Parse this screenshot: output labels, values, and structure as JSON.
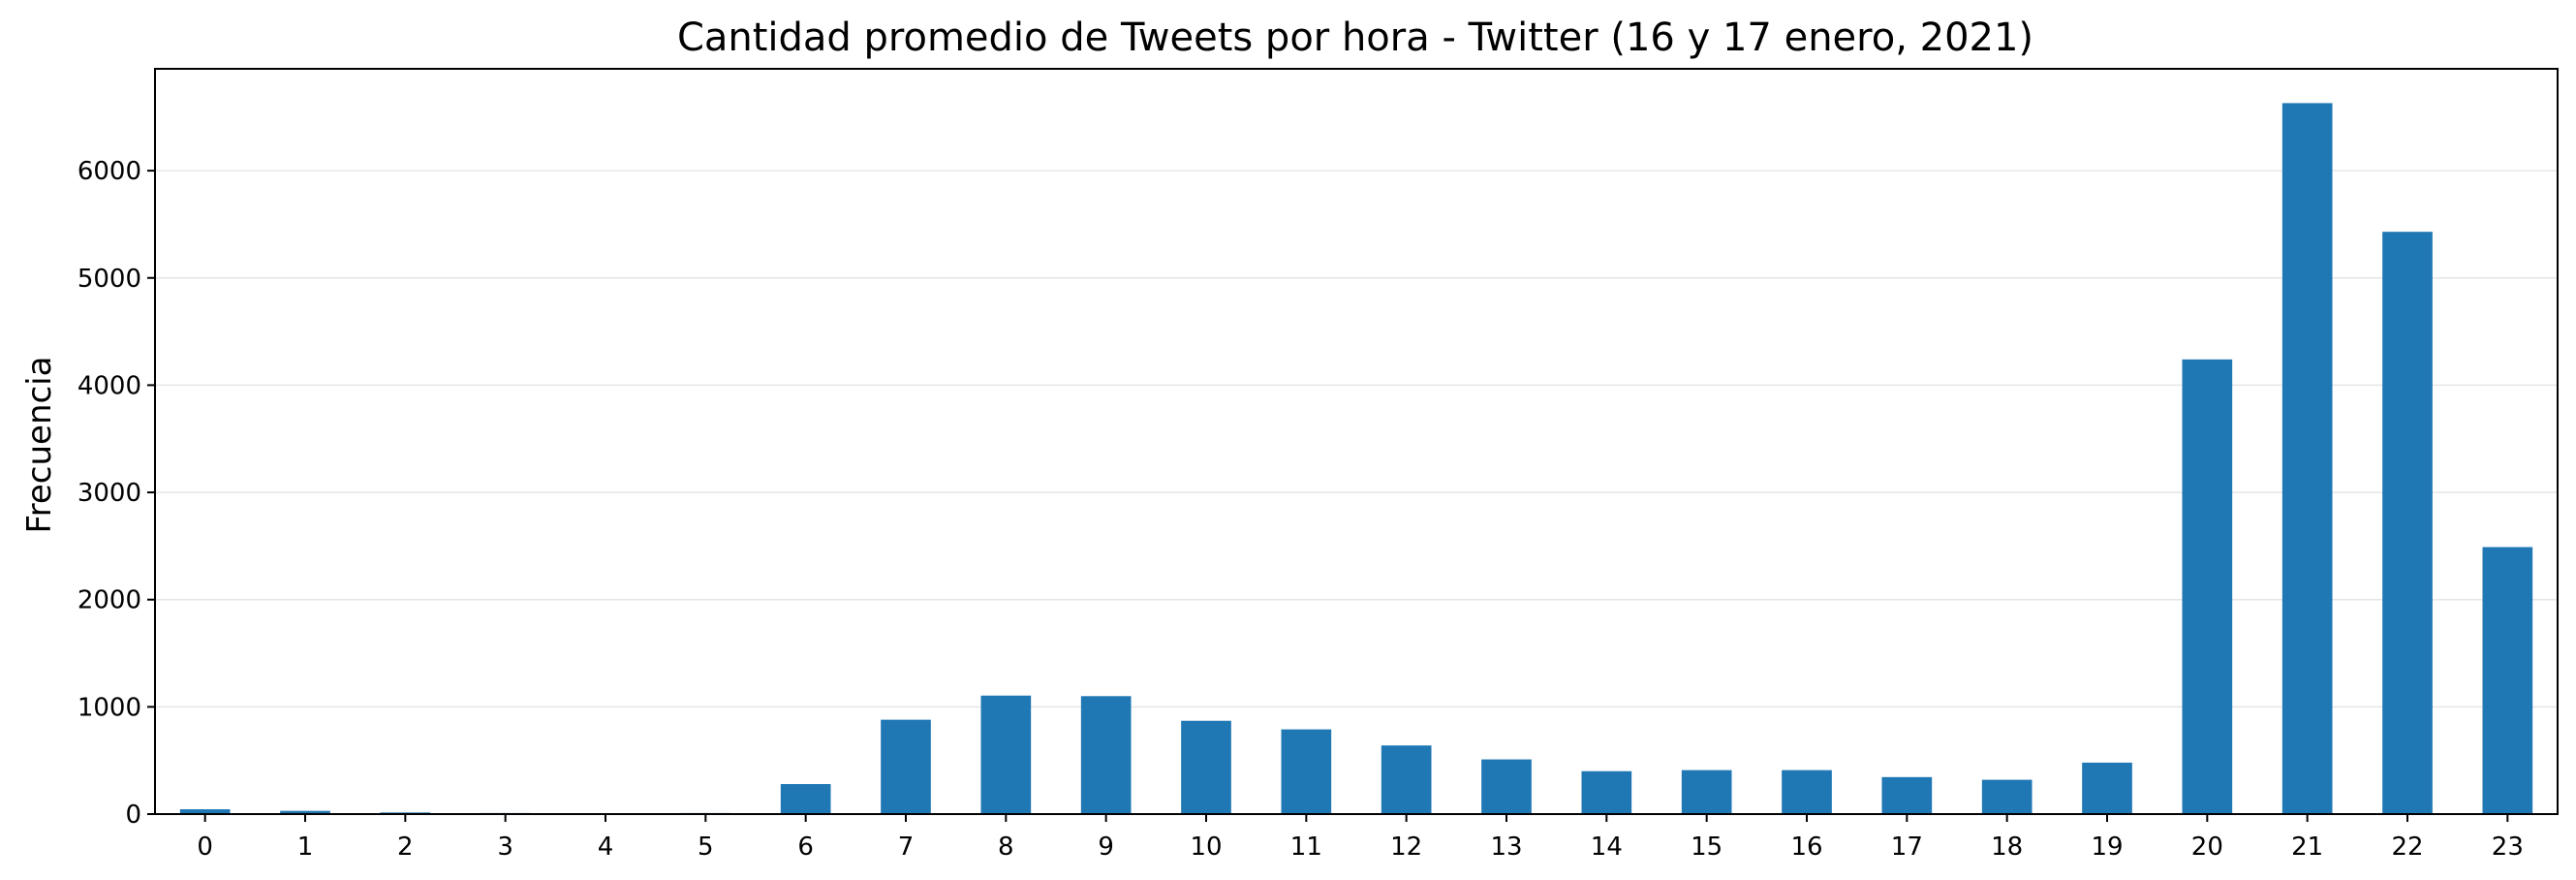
{
  "chart_data": {
    "type": "bar",
    "title": "Cantidad promedio de Tweets por hora - Twitter (16 y 17 enero, 2021)",
    "xlabel": "",
    "ylabel": "Frecuencia",
    "categories": [
      "0",
      "1",
      "2",
      "3",
      "4",
      "5",
      "6",
      "7",
      "8",
      "9",
      "10",
      "11",
      "12",
      "13",
      "14",
      "15",
      "16",
      "17",
      "18",
      "19",
      "20",
      "21",
      "22",
      "23"
    ],
    "values": [
      45,
      30,
      15,
      10,
      5,
      10,
      280,
      880,
      1105,
      1100,
      870,
      790,
      640,
      510,
      400,
      410,
      410,
      345,
      320,
      480,
      4240,
      6630,
      5430,
      2490
    ],
    "ylim": [
      0,
      6950
    ],
    "yticks": [
      0,
      1000,
      2000,
      3000,
      4000,
      5000,
      6000
    ],
    "grid": "y",
    "bar_color": "#1f77b4"
  }
}
